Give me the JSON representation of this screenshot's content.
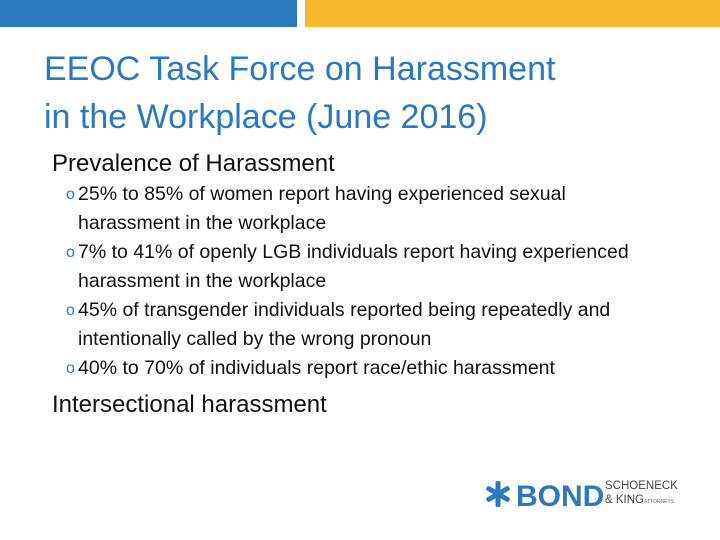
{
  "header": {
    "title": [
      "EEOC Task Force on Harassment",
      "in the Workplace (June 2016)"
    ]
  },
  "sections": [
    {
      "heading": "Prevalence of Harassment",
      "bullets": [
        "25% to 85% of women report having experienced sexual harassment in the workplace",
        "7% to 41% of openly LGB individuals report having experienced harassment in the workplace",
        "45% of transgender individuals reported being repeatedly and intentionally called by the wrong pronoun",
        "40% to 70% of individuals report race/ethic harassment"
      ]
    },
    {
      "heading": "Intersectional harassment",
      "bullets": []
    }
  ],
  "logo": {
    "name": "BOND",
    "line1": "SCHOENECK",
    "line2": "& KING",
    "tag": "ATTORNEYS"
  }
}
